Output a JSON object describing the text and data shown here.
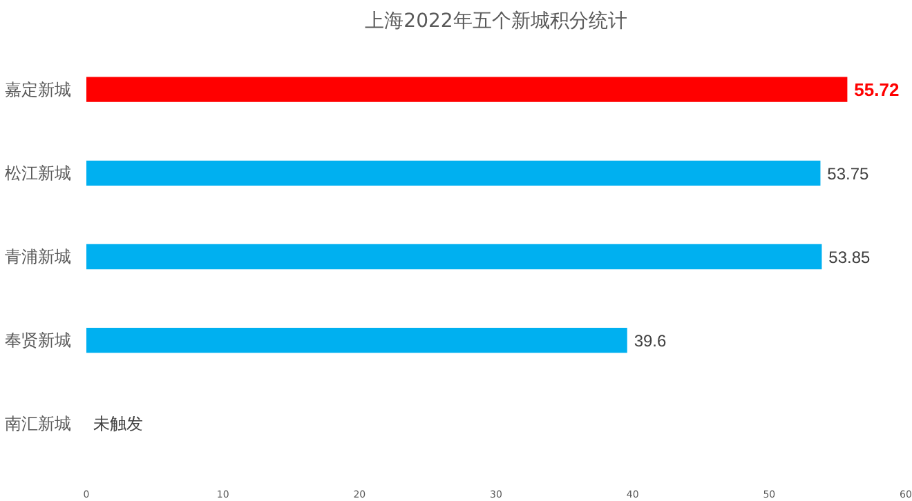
{
  "chart_data": {
    "type": "bar",
    "orientation": "horizontal",
    "title": "上海2022年五个新城积分统计",
    "categories": [
      "嘉定新城",
      "松江新城",
      "青浦新城",
      "奉贤新城",
      "南汇新城"
    ],
    "values": [
      55.72,
      53.75,
      53.85,
      39.6,
      null
    ],
    "colors": [
      "#ff0000",
      "#00b0f0",
      "#00b0f0",
      "#00b0f0",
      "#00b0f0"
    ],
    "value_labels": [
      "55.72",
      "53.75",
      "53.85",
      "39.6",
      "未触发"
    ],
    "xlim": [
      0,
      60
    ],
    "xticks": [
      0,
      10,
      20,
      30,
      40,
      50,
      60
    ],
    "grid": false
  }
}
